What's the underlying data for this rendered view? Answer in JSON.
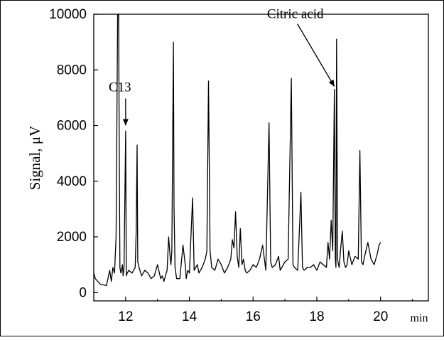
{
  "chart_data": {
    "type": "line",
    "title": "",
    "xlabel": "",
    "x_unit": "min",
    "ylabel": "Signal, μV",
    "xlim": [
      11,
      21.5
    ],
    "ylim": [
      -300,
      10000
    ],
    "x_ticks": [
      12,
      14,
      16,
      18,
      20
    ],
    "x_tick_labels": [
      "12",
      "14",
      "16",
      "18",
      "20"
    ],
    "y_ticks": [
      0,
      2000,
      4000,
      6000,
      8000,
      10000
    ],
    "y_tick_labels": [
      "0",
      "2000",
      "4000",
      "6000",
      "8000",
      "10000"
    ],
    "grid": false,
    "legend": "none",
    "line_color": "#000000",
    "series": [
      {
        "x": [
          11.0,
          11.05,
          11.2,
          11.4,
          11.5,
          11.55,
          11.6,
          11.65,
          11.7,
          11.75,
          11.76,
          11.78,
          11.8,
          11.82,
          11.85,
          11.9,
          11.92,
          11.95,
          12.0,
          12.02,
          12.05,
          12.1,
          12.2,
          12.3,
          12.33,
          12.36,
          12.38,
          12.42,
          12.5,
          12.6,
          12.7,
          12.8,
          12.9,
          13.0,
          13.1,
          13.15,
          13.2,
          13.3,
          13.35,
          13.4,
          13.42,
          13.45,
          13.5,
          13.52,
          13.55,
          13.6,
          13.7,
          13.8,
          13.88,
          13.9,
          13.95,
          14.0,
          14.1,
          14.15,
          14.2,
          14.25,
          14.3,
          14.4,
          14.5,
          14.55,
          14.6,
          14.65,
          14.7,
          14.8,
          14.9,
          15.0,
          15.1,
          15.2,
          15.3,
          15.35,
          15.4,
          15.45,
          15.5,
          15.55,
          15.6,
          15.65,
          15.7,
          15.75,
          15.8,
          15.9,
          16.0,
          16.1,
          16.2,
          16.3,
          16.4,
          16.5,
          16.55,
          16.6,
          16.7,
          16.8,
          16.85,
          16.9,
          17.0,
          17.1,
          17.2,
          17.25,
          17.3,
          17.4,
          17.5,
          17.55,
          17.6,
          17.7,
          17.8,
          17.9,
          18.0,
          18.1,
          18.2,
          18.3,
          18.35,
          18.4,
          18.45,
          18.5,
          18.55,
          18.58,
          18.6,
          18.62,
          18.65,
          18.68,
          18.7,
          18.75,
          18.8,
          18.85,
          18.9,
          18.95,
          19.0,
          19.1,
          19.2,
          19.3,
          19.35,
          19.4,
          19.45,
          19.5,
          19.6,
          19.7,
          19.8,
          19.9,
          19.95,
          20.0
        ],
        "y": [
          700,
          500,
          300,
          250,
          800,
          400,
          900,
          700,
          2000,
          10000,
          10000,
          10000,
          5000,
          900,
          700,
          1000,
          600,
          900,
          5800,
          600,
          700,
          800,
          700,
          900,
          2200,
          5300,
          1100,
          900,
          600,
          800,
          700,
          500,
          600,
          1000,
          500,
          600,
          400,
          800,
          2000,
          1200,
          1000,
          1500,
          9000,
          3000,
          900,
          500,
          500,
          1700,
          900,
          500,
          800,
          700,
          3400,
          800,
          900,
          1000,
          700,
          900,
          1200,
          1500,
          7600,
          1500,
          900,
          800,
          1200,
          1000,
          700,
          900,
          1200,
          1900,
          1600,
          2900,
          1300,
          900,
          2300,
          1000,
          1200,
          800,
          700,
          800,
          1000,
          900,
          1200,
          1700,
          800,
          6100,
          1100,
          900,
          1000,
          1300,
          800,
          900,
          1100,
          1200,
          7700,
          1000,
          900,
          800,
          3600,
          900,
          800,
          900,
          900,
          1000,
          800,
          1100,
          1000,
          900,
          1800,
          1200,
          2600,
          1500,
          7300,
          1200,
          900,
          9100,
          1200,
          1000,
          900,
          1600,
          2200,
          1100,
          900,
          1000,
          1500,
          1000,
          1300,
          1200,
          5100,
          1100,
          1000,
          1300,
          1800,
          1200,
          1000,
          1400,
          1700,
          1800
        ]
      }
    ],
    "annotations": [
      {
        "text": "C13",
        "target_x": 12.0,
        "target_y": 5900
      },
      {
        "text": "Citric acid",
        "target_x": 18.55,
        "target_y": 7300
      }
    ]
  }
}
